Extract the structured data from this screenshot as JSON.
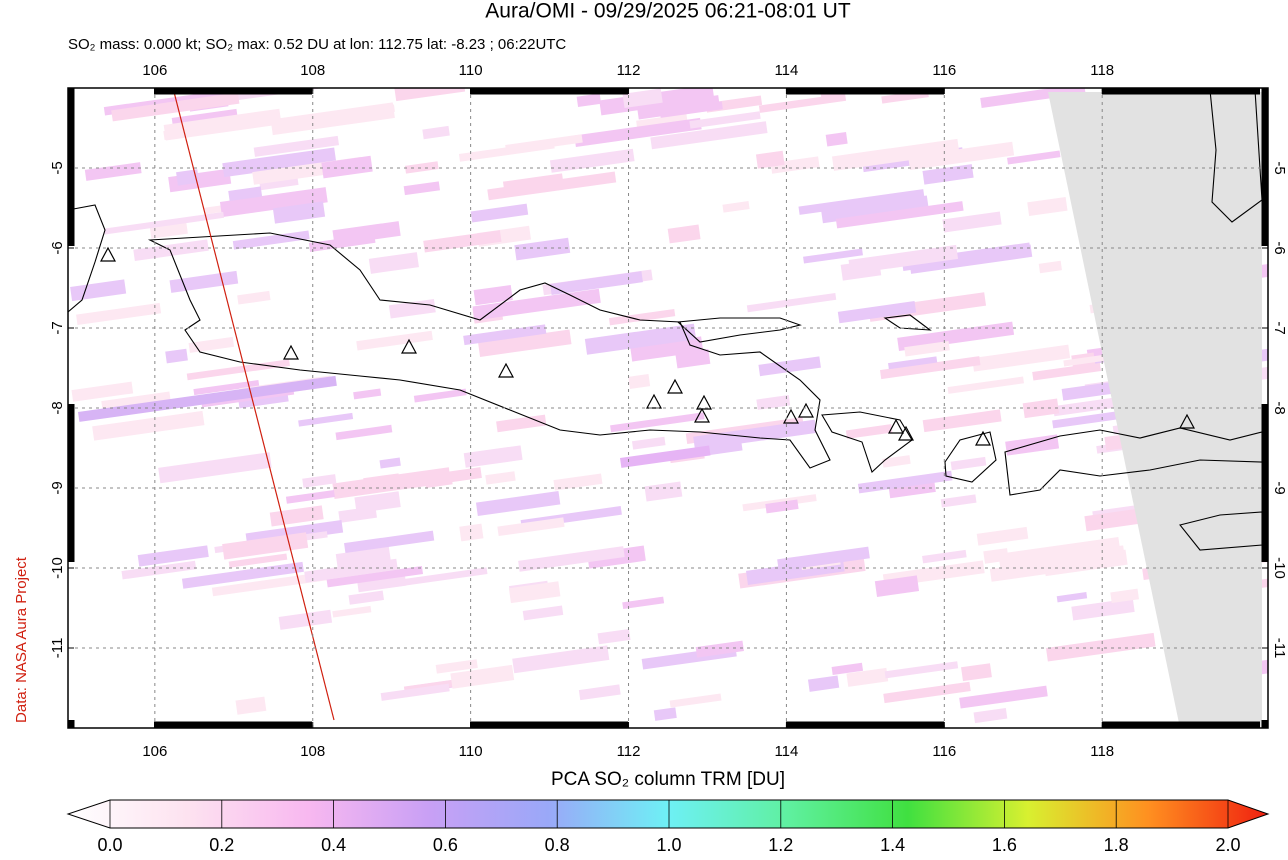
{
  "title": "Aura/OMI - 09/29/2025 06:21-08:01 UT",
  "subtitle": "SO₂ mass: 0.000 kt; SO₂ max: 0.52 DU at lon: 112.75 lat: -8.23 ; 06:22UTC",
  "credit": "Data: NASA Aura Project",
  "map": {
    "xlim": [
      104.9,
      120.1
    ],
    "ylim": [
      -12,
      -4
    ],
    "xticks": [
      106,
      108,
      110,
      112,
      114,
      116,
      118
    ],
    "yticks": [
      -5,
      -6,
      -7,
      -8,
      -9,
      -10,
      -11
    ],
    "grid": true
  },
  "colorbar": {
    "label": "PCA SO₂ column TRM [DU]",
    "lim": [
      0,
      2
    ],
    "ticks": [
      {
        "value": 0,
        "label": "0.0"
      },
      {
        "value": 0.2,
        "label": "0.2"
      },
      {
        "value": 0.4,
        "label": "0.4"
      },
      {
        "value": 0.6,
        "label": "0.6"
      },
      {
        "value": 0.8,
        "label": "0.8"
      },
      {
        "value": 1,
        "label": "1.0"
      },
      {
        "value": 1.2,
        "label": "1.2"
      },
      {
        "value": 1.4,
        "label": "1.4"
      },
      {
        "value": 1.6,
        "label": "1.6"
      },
      {
        "value": 1.8,
        "label": "1.8"
      },
      {
        "value": 2,
        "label": "2.0"
      }
    ]
  }
}
